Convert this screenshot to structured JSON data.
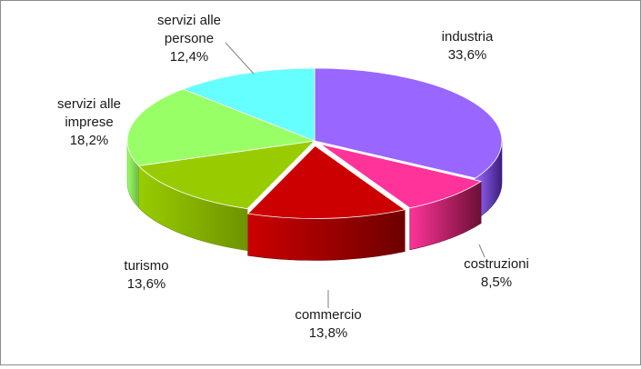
{
  "chart_data": {
    "type": "pie",
    "style": "3d-exploded",
    "start_angle_deg": -90,
    "direction": "clockwise",
    "slices": [
      {
        "label": "industria",
        "value": 33.6,
        "display": "33,6%",
        "color": "#9966ff",
        "side_color": "#3a1f7a"
      },
      {
        "label": "costruzioni",
        "value": 8.5,
        "display": "8,5%",
        "color": "#ff3399",
        "side_color": "#6b1035"
      },
      {
        "label": "commercio",
        "value": 13.8,
        "display": "13,8%",
        "color": "#cc0000",
        "side_color": "#6e0000"
      },
      {
        "label": "turismo",
        "value": 13.6,
        "display": "13,6%",
        "color": "#99cc00",
        "side_color": "#6e9400"
      },
      {
        "label": "servizi alle imprese",
        "value": 18.2,
        "display": "18,2%",
        "color": "#99ff66",
        "side_color": "#6fb946"
      },
      {
        "label": "servizi alle persone",
        "value": 12.4,
        "display": "12,4%",
        "color": "#66ffff",
        "side_color": "#3aaeb0"
      }
    ]
  }
}
